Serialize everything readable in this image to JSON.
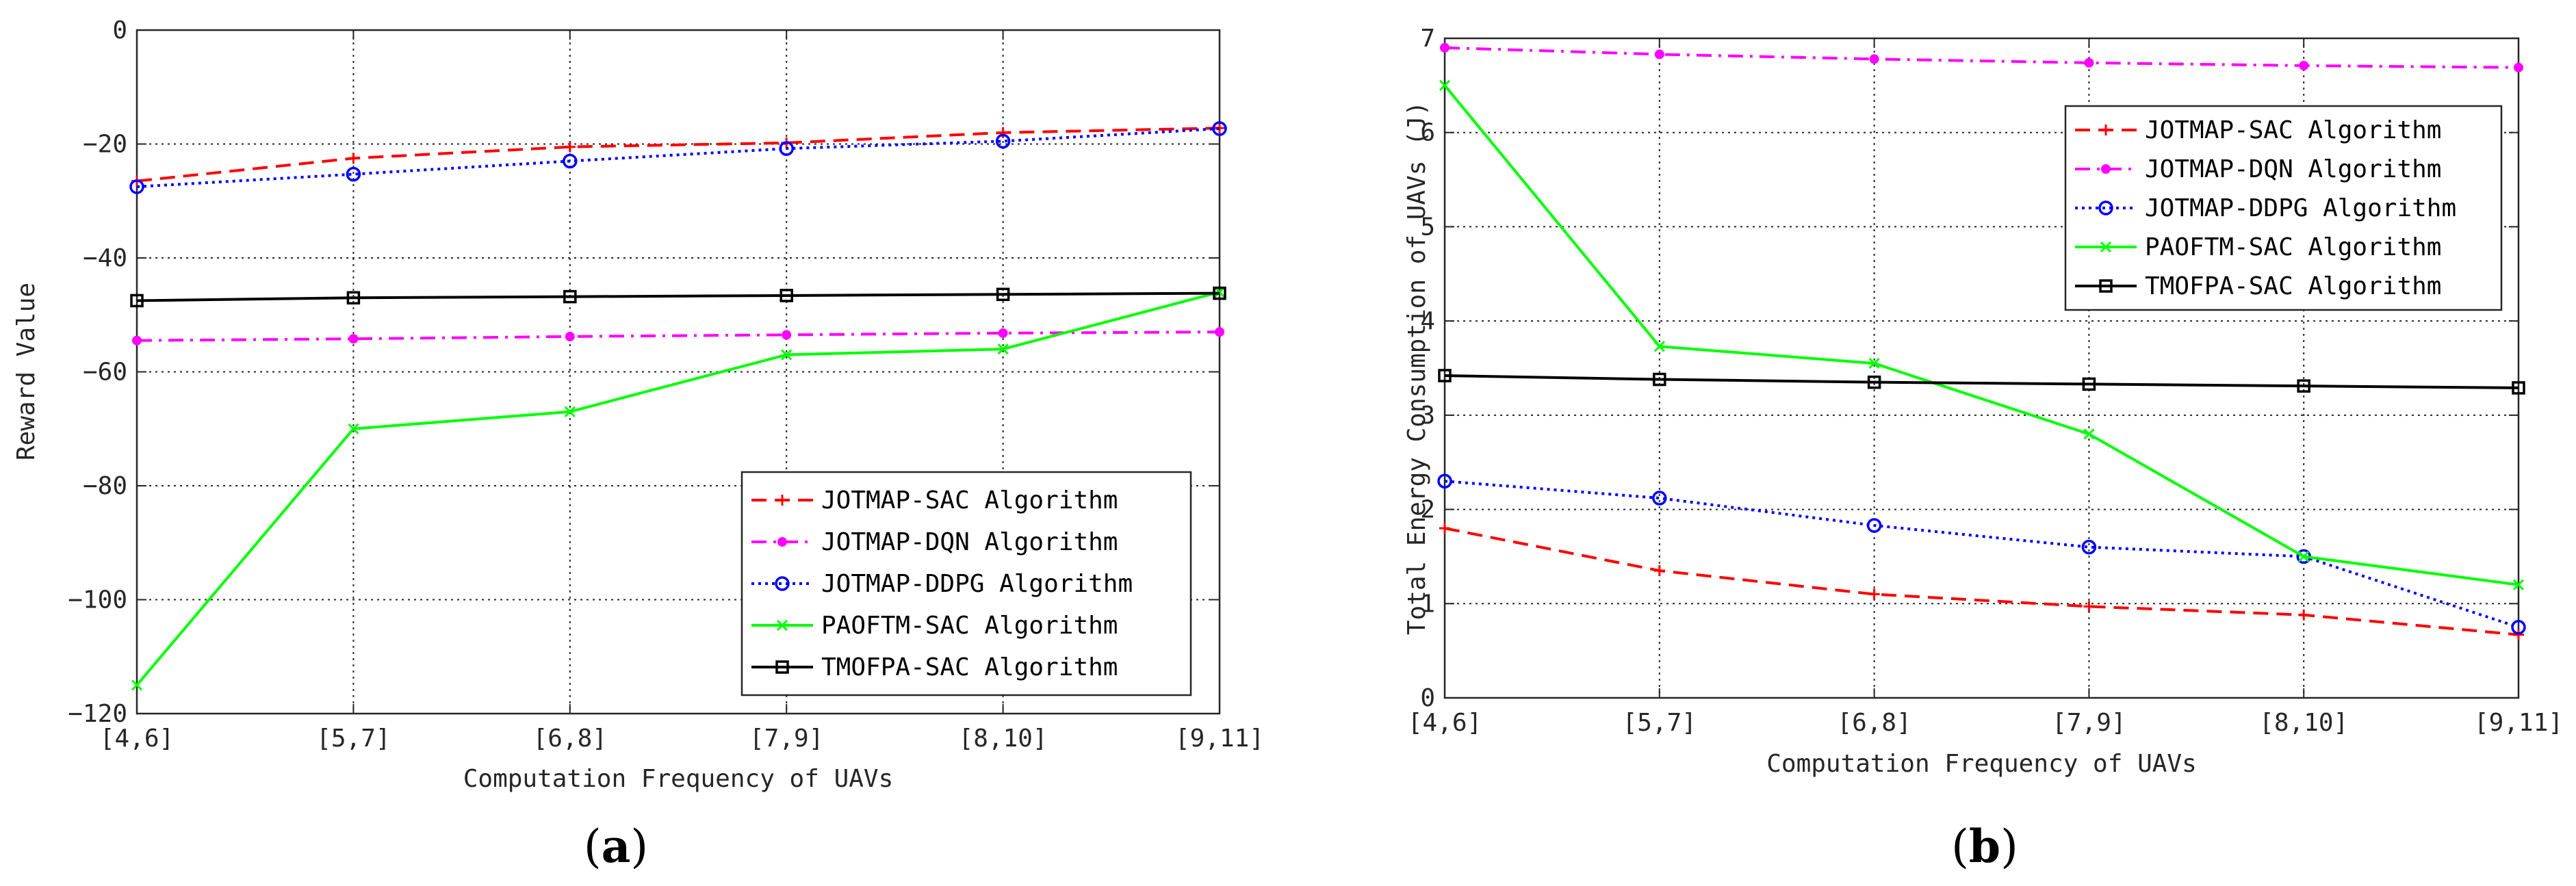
{
  "colors": {
    "JOTMAP-SAC Algorithm": "#ff0000",
    "JOTMAP-DQN Algorithm": "#ff00ff",
    "JOTMAP-DDPG Algorithm": "#0000ff",
    "PAOFTM-SAC Algorithm": "#00ff00",
    "TMOFPA-SAC Algorithm": "#000000"
  },
  "chart_data": [
    {
      "type": "line",
      "panel_label": "a",
      "title": "",
      "xlabel": "Computation Frequency of UAVs",
      "ylabel": "Reward Value",
      "categories": [
        "[4,6]",
        "[5,7]",
        "[6,8]",
        "[7,9]",
        "[8,10]",
        "[9,11]"
      ],
      "ylim": [
        -120,
        0
      ],
      "yticks": [
        0,
        -20,
        -40,
        -60,
        -80,
        -100,
        -120
      ],
      "grid": true,
      "legend_position": "lower-right",
      "series": [
        {
          "name": "JOTMAP-SAC Algorithm",
          "values": [
            -26.5,
            -22.5,
            -20.5,
            -19.8,
            -18,
            -17.2
          ],
          "marker": "plus",
          "dash": "dashed"
        },
        {
          "name": "JOTMAP-DQN Algorithm",
          "values": [
            -54.5,
            -54.2,
            -53.8,
            -53.5,
            -53.2,
            -53
          ],
          "marker": "dot",
          "dash": "dashdot"
        },
        {
          "name": "JOTMAP-DDPG Algorithm",
          "values": [
            -27.5,
            -25.3,
            -23,
            -20.8,
            -19.5,
            -17.3
          ],
          "marker": "circle",
          "dash": "dotted"
        },
        {
          "name": "PAOFTM-SAC Algorithm",
          "values": [
            -115,
            -70,
            -67,
            -57,
            -56,
            -46
          ],
          "marker": "x",
          "dash": "solid"
        },
        {
          "name": "TMOFPA-SAC Algorithm",
          "values": [
            -47.5,
            -47,
            -46.8,
            -46.6,
            -46.4,
            -46.2
          ],
          "marker": "square",
          "dash": "solid"
        }
      ]
    },
    {
      "type": "line",
      "panel_label": "b",
      "title": "",
      "xlabel": "Computation Frequency of UAVs",
      "ylabel": "Total Energy Consumption of UAVs (J)",
      "categories": [
        "[4,6]",
        "[5,7]",
        "[6,8]",
        "[7,9]",
        "[8,10]",
        "[9,11]"
      ],
      "ylim": [
        0,
        7
      ],
      "yticks": [
        0,
        1,
        2,
        3,
        4,
        5,
        6,
        7
      ],
      "grid": true,
      "legend_position": "top-right",
      "series": [
        {
          "name": "JOTMAP-SAC Algorithm",
          "values": [
            1.8,
            1.35,
            1.1,
            0.97,
            0.88,
            0.67
          ],
          "marker": "plus",
          "dash": "dashed"
        },
        {
          "name": "JOTMAP-DQN Algorithm",
          "values": [
            6.9,
            6.83,
            6.78,
            6.74,
            6.71,
            6.69
          ],
          "marker": "dot",
          "dash": "dashdot"
        },
        {
          "name": "JOTMAP-DDPG Algorithm",
          "values": [
            2.3,
            2.12,
            1.83,
            1.6,
            1.5,
            0.75
          ],
          "marker": "circle",
          "dash": "dotted"
        },
        {
          "name": "PAOFTM-SAC Algorithm",
          "values": [
            6.5,
            3.73,
            3.55,
            2.8,
            1.5,
            1.2
          ],
          "marker": "x",
          "dash": "solid"
        },
        {
          "name": "TMOFPA-SAC Algorithm",
          "values": [
            3.42,
            3.38,
            3.35,
            3.33,
            3.31,
            3.29
          ],
          "marker": "square",
          "dash": "solid"
        }
      ]
    }
  ]
}
